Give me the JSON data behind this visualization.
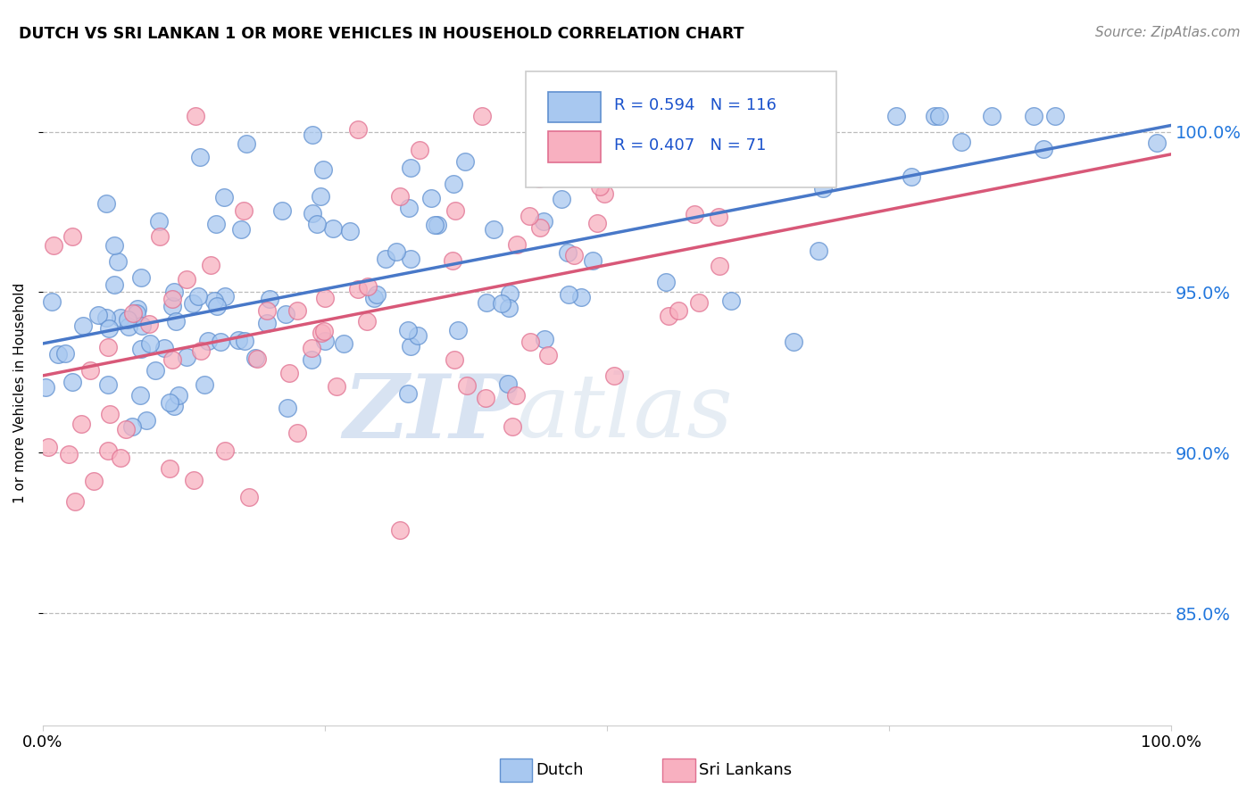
{
  "title": "DUTCH VS SRI LANKAN 1 OR MORE VEHICLES IN HOUSEHOLD CORRELATION CHART",
  "source": "Source: ZipAtlas.com",
  "ylabel": "1 or more Vehicles in Household",
  "ytick_labels": [
    "100.0%",
    "95.0%",
    "90.0%",
    "85.0%"
  ],
  "ytick_values": [
    1.0,
    0.95,
    0.9,
    0.85
  ],
  "xlim": [
    0.0,
    1.0
  ],
  "ylim": [
    0.815,
    1.022
  ],
  "dutch_color": "#a8c8f0",
  "sri_color": "#f8b0c0",
  "dutch_edge_color": "#6090d0",
  "sri_edge_color": "#e07090",
  "dutch_line_color": "#4878c8",
  "sri_line_color": "#d85878",
  "legend_text_color": "#1a52cc",
  "R_dutch": 0.594,
  "N_dutch": 116,
  "R_sri": 0.407,
  "N_sri": 71,
  "watermark_zip": "ZIP",
  "watermark_atlas": "atlas",
  "dutch_seed": 10,
  "sri_seed": 20,
  "dutch_line_x0": 0.0,
  "dutch_line_y0": 0.934,
  "dutch_line_x1": 1.0,
  "dutch_line_y1": 1.002,
  "sri_line_x0": 0.0,
  "sri_line_y0": 0.924,
  "sri_line_x1": 1.0,
  "sri_line_y1": 0.993
}
